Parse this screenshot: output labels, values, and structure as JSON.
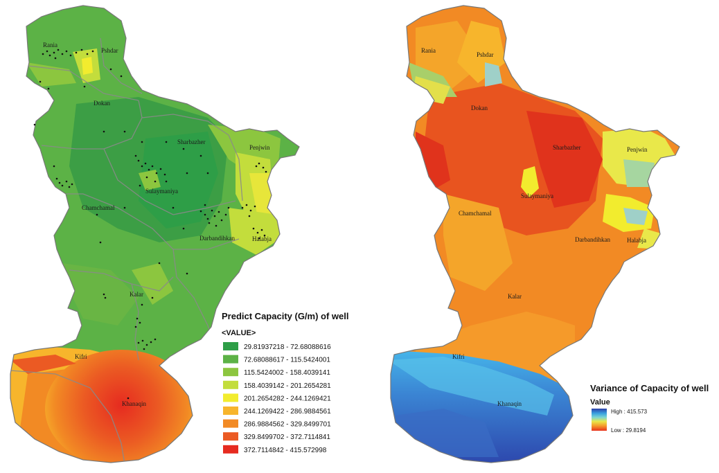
{
  "left_map": {
    "places": [
      {
        "id": "rania",
        "name": "Rania"
      },
      {
        "id": "pshdar",
        "name": "Pshdar"
      },
      {
        "id": "dokan",
        "name": "Dokan"
      },
      {
        "id": "sharbazher",
        "name": "Sharbazher"
      },
      {
        "id": "penjwin",
        "name": "Penjwin"
      },
      {
        "id": "sulaymaniya",
        "name": "Sulaymaniya"
      },
      {
        "id": "chamchamal",
        "name": "Chamchamal"
      },
      {
        "id": "darbandihkan",
        "name": "Darbandihkan"
      },
      {
        "id": "halabja",
        "name": "Halabja"
      },
      {
        "id": "kalar",
        "name": "Kalar"
      },
      {
        "id": "kifri",
        "name": "Kifri"
      },
      {
        "id": "khanaqin",
        "name": "Khanaqin"
      }
    ],
    "legend": {
      "title": "Predict Capacity (G/m) of well",
      "subtitle": "<VALUE>",
      "classes": [
        {
          "label": "29.81937218 - 72.68088616",
          "color": "#2e9e47"
        },
        {
          "label": "72.68088617 - 115.5424001",
          "color": "#5cb246"
        },
        {
          "label": "115.5424002 - 158.4039141",
          "color": "#8cc63f"
        },
        {
          "label": "158.4039142 - 201.2654281",
          "color": "#c3dd3c"
        },
        {
          "label": "201.2654282 - 244.1269421",
          "color": "#f2ec2e"
        },
        {
          "label": "244.1269422 - 286.9884561",
          "color": "#f7b52c"
        },
        {
          "label": "286.9884562 - 329.8499701",
          "color": "#f28a24"
        },
        {
          "label": "329.8499702 - 372.7114841",
          "color": "#eb5a23"
        },
        {
          "label": "372.7114842 - 415.572998",
          "color": "#e62b20"
        }
      ]
    }
  },
  "right_map": {
    "places": [
      {
        "id": "rania",
        "name": "Rania"
      },
      {
        "id": "pshdar",
        "name": "Pshdar"
      },
      {
        "id": "dokan",
        "name": "Dokan"
      },
      {
        "id": "sharbazher",
        "name": "Sharbazher"
      },
      {
        "id": "penjwin",
        "name": "Penjwin"
      },
      {
        "id": "sulaymaniya",
        "name": "Sulaymaniya"
      },
      {
        "id": "chamchamal",
        "name": "Chamchamal"
      },
      {
        "id": "darbandihkan",
        "name": "Darbandihkan"
      },
      {
        "id": "halabja",
        "name": "Halabja"
      },
      {
        "id": "kalar",
        "name": "Kalar"
      },
      {
        "id": "kifri",
        "name": "Kifri"
      },
      {
        "id": "khanaqin",
        "name": "Khanaqin"
      }
    ],
    "legend": {
      "title": "Variance of Capacity of well",
      "subtitle": "Value",
      "high_label": "High : 415.573",
      "low_label": "Low : 29.8194",
      "ramp_colors": [
        "#2b3fa8",
        "#3ba3e0",
        "#7fd6d0",
        "#e9e84a",
        "#f59a2a",
        "#e8321e"
      ]
    }
  }
}
